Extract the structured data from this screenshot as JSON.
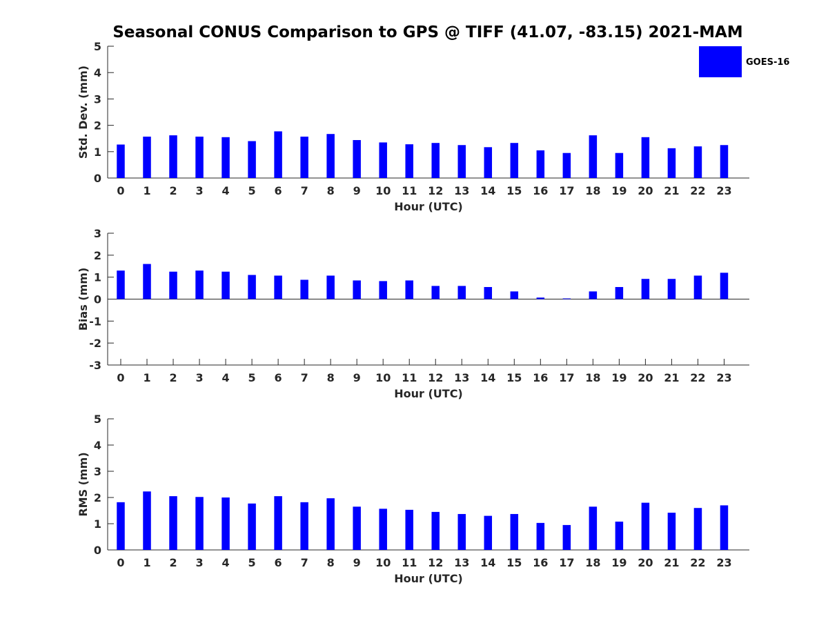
{
  "title": "Seasonal CONUS Comparison to GPS @ TIFF (41.07, -83.15) 2021-MAM",
  "legend": {
    "label": "GOES-16",
    "color": "#0000ff",
    "placement": "top-right"
  },
  "chart_data": [
    {
      "type": "bar",
      "xlabel": "Hour (UTC)",
      "ylabel": "Std. Dev. (mm)",
      "ylim": [
        0,
        5
      ],
      "yticks": [
        0,
        1,
        2,
        3,
        4,
        5
      ],
      "categories": [
        "0",
        "1",
        "2",
        "3",
        "4",
        "5",
        "6",
        "7",
        "8",
        "9",
        "10",
        "11",
        "12",
        "13",
        "14",
        "15",
        "16",
        "17",
        "18",
        "19",
        "20",
        "21",
        "22",
        "23"
      ],
      "series": [
        {
          "name": "GOES-16",
          "color": "#0000ff",
          "values": [
            1.27,
            1.57,
            1.62,
            1.57,
            1.55,
            1.4,
            1.77,
            1.57,
            1.67,
            1.44,
            1.35,
            1.28,
            1.33,
            1.25,
            1.17,
            1.33,
            1.05,
            0.95,
            1.62,
            0.95,
            1.55,
            1.13,
            1.2,
            1.25
          ]
        }
      ],
      "grid": false
    },
    {
      "type": "bar",
      "xlabel": "Hour (UTC)",
      "ylabel": "Bias (mm)",
      "ylim": [
        -3,
        3
      ],
      "yticks": [
        -3,
        -2,
        -1,
        0,
        1,
        2,
        3
      ],
      "categories": [
        "0",
        "1",
        "2",
        "3",
        "4",
        "5",
        "6",
        "7",
        "8",
        "9",
        "10",
        "11",
        "12",
        "13",
        "14",
        "15",
        "16",
        "17",
        "18",
        "19",
        "20",
        "21",
        "22",
        "23"
      ],
      "series": [
        {
          "name": "GOES-16",
          "color": "#0000ff",
          "values": [
            1.3,
            1.6,
            1.25,
            1.3,
            1.25,
            1.1,
            1.07,
            0.88,
            1.07,
            0.85,
            0.82,
            0.85,
            0.6,
            0.6,
            0.55,
            0.35,
            0.07,
            0.03,
            0.35,
            0.55,
            0.92,
            0.92,
            1.07,
            1.2
          ]
        }
      ],
      "grid": false
    },
    {
      "type": "bar",
      "xlabel": "Hour (UTC)",
      "ylabel": "RMS (mm)",
      "ylim": [
        0,
        5
      ],
      "yticks": [
        0,
        1,
        2,
        3,
        4,
        5
      ],
      "categories": [
        "0",
        "1",
        "2",
        "3",
        "4",
        "5",
        "6",
        "7",
        "8",
        "9",
        "10",
        "11",
        "12",
        "13",
        "14",
        "15",
        "16",
        "17",
        "18",
        "19",
        "20",
        "21",
        "22",
        "23"
      ],
      "series": [
        {
          "name": "GOES-16",
          "color": "#0000ff",
          "values": [
            1.82,
            2.23,
            2.05,
            2.02,
            2.0,
            1.77,
            2.05,
            1.82,
            1.97,
            1.65,
            1.57,
            1.53,
            1.45,
            1.37,
            1.3,
            1.37,
            1.03,
            0.95,
            1.65,
            1.08,
            1.8,
            1.42,
            1.6,
            1.7
          ]
        }
      ],
      "grid": false
    }
  ]
}
